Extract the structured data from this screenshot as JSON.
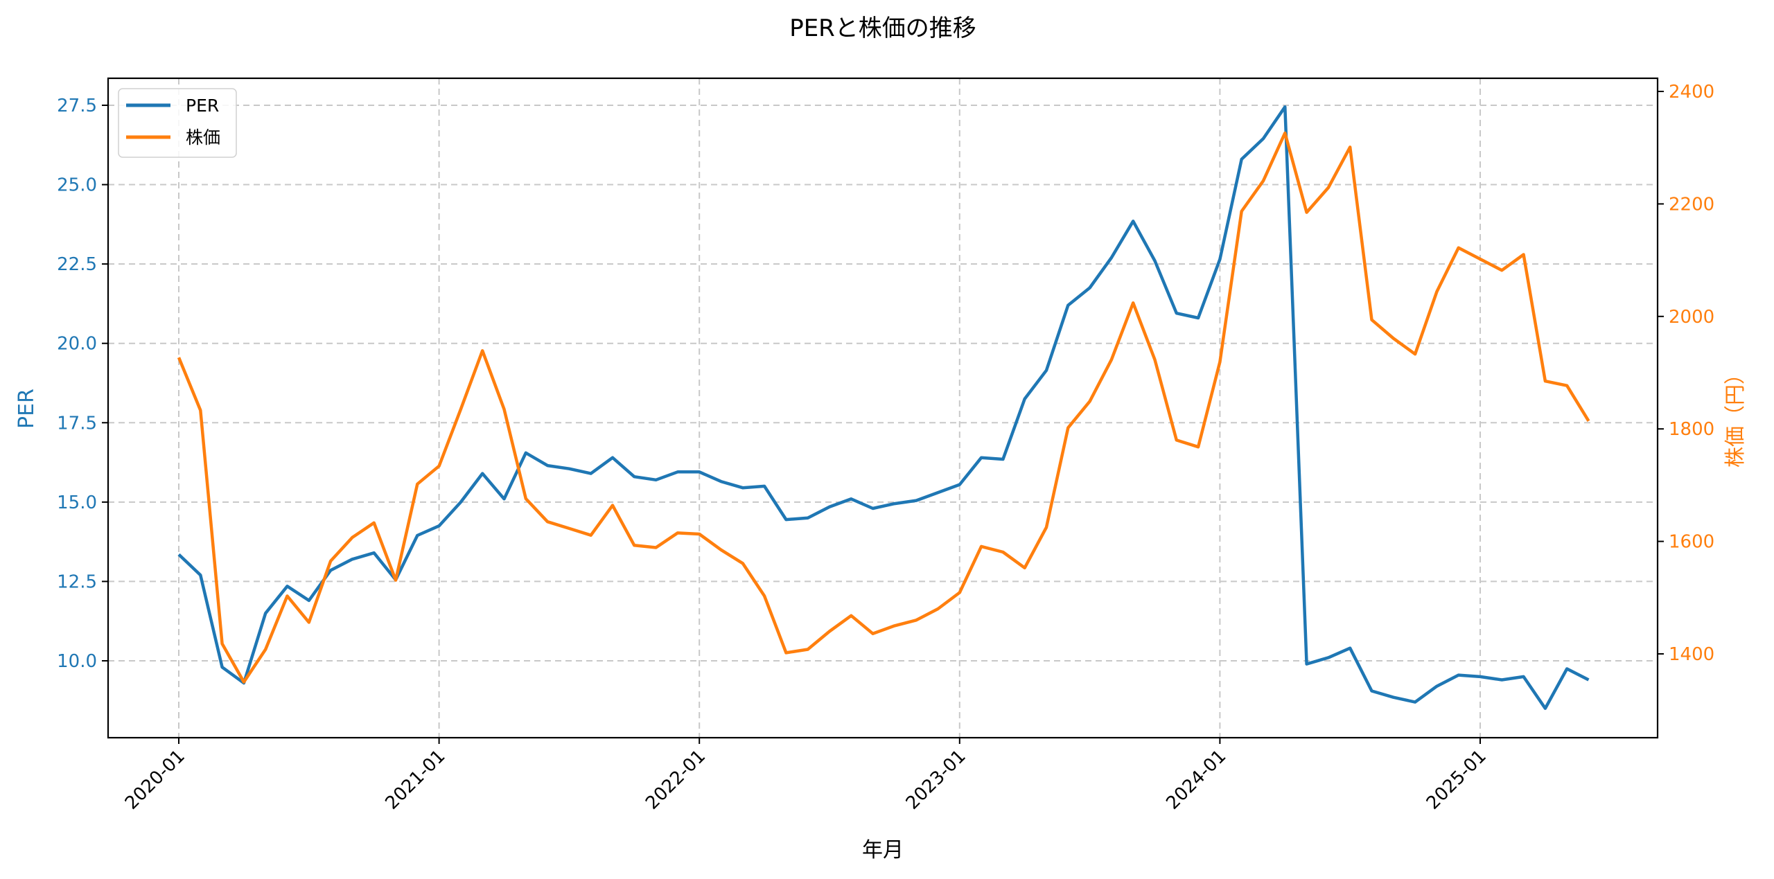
{
  "chart_data": {
    "type": "line",
    "title": "PERと株価の推移",
    "xlabel": "年月",
    "ylabel_left": "PER",
    "ylabel_right": "株価（円）",
    "x_ticks": [
      "2020-01",
      "2021-01",
      "2022-01",
      "2023-01",
      "2024-01",
      "2025-01"
    ],
    "y_left_ticks": [
      "10.0",
      "12.5",
      "15.0",
      "17.5",
      "20.0",
      "22.5",
      "25.0",
      "27.5"
    ],
    "y_right_ticks": [
      "1400",
      "1600",
      "1800",
      "2000",
      "2200",
      "2400"
    ],
    "ylim_left": [
      7.4,
      28.35
    ],
    "ylim_right": [
      1245,
      2420
    ],
    "grid": true,
    "legend_position": "upper left",
    "x": [
      "2020-01",
      "2020-02",
      "2020-03",
      "2020-04",
      "2020-05",
      "2020-06",
      "2020-07",
      "2020-08",
      "2020-09",
      "2020-10",
      "2020-11",
      "2020-12",
      "2021-01",
      "2021-02",
      "2021-03",
      "2021-04",
      "2021-05",
      "2021-06",
      "2021-07",
      "2021-08",
      "2021-09",
      "2021-10",
      "2021-11",
      "2021-12",
      "2022-01",
      "2022-02",
      "2022-03",
      "2022-04",
      "2022-05",
      "2022-06",
      "2022-07",
      "2022-08",
      "2022-09",
      "2022-10",
      "2022-11",
      "2022-12",
      "2023-01",
      "2023-02",
      "2023-03",
      "2023-04",
      "2023-05",
      "2023-06",
      "2023-07",
      "2023-08",
      "2023-09",
      "2023-10",
      "2023-11",
      "2023-12",
      "2024-01",
      "2024-02",
      "2024-03",
      "2024-04",
      "2024-05",
      "2024-06",
      "2024-07",
      "2024-08",
      "2024-09",
      "2024-10",
      "2024-11",
      "2024-12",
      "2025-01",
      "2025-02",
      "2025-03",
      "2025-04",
      "2025-05",
      "2025-06"
    ],
    "series": [
      {
        "name": "PER",
        "axis": "left",
        "color": "#1f77b4",
        "values": [
          13.35,
          12.7,
          9.8,
          9.3,
          11.5,
          12.35,
          11.9,
          12.85,
          13.2,
          13.4,
          12.55,
          13.95,
          14.25,
          15.0,
          15.9,
          15.1,
          16.55,
          16.15,
          16.05,
          15.9,
          16.4,
          15.8,
          15.7,
          15.95,
          15.95,
          15.65,
          15.45,
          15.5,
          14.45,
          14.5,
          14.85,
          15.1,
          14.8,
          14.95,
          15.05,
          15.3,
          15.55,
          16.4,
          16.35,
          18.25,
          19.15,
          21.2,
          21.75,
          22.7,
          23.85,
          22.6,
          20.95,
          20.8,
          22.65,
          25.8,
          26.45,
          27.45,
          9.9,
          10.1,
          10.4,
          9.05,
          8.85,
          8.7,
          9.2,
          9.55,
          9.5,
          9.4,
          9.5,
          8.5,
          9.75,
          9.4
        ]
      },
      {
        "name": "株価",
        "axis": "right",
        "color": "#ff7f0e",
        "values": [
          1927,
          1833,
          1418,
          1350,
          1408,
          1503,
          1456,
          1565,
          1607,
          1633,
          1531,
          1702,
          1734,
          1835,
          1939,
          1835,
          1676,
          1635,
          1623,
          1611,
          1664,
          1593,
          1589,
          1615,
          1613,
          1585,
          1561,
          1503,
          1402,
          1408,
          1440,
          1468,
          1436,
          1450,
          1460,
          1480,
          1509,
          1591,
          1581,
          1553,
          1625,
          1802,
          1849,
          1923,
          2024,
          1923,
          1780,
          1768,
          1919,
          2187,
          2241,
          2326,
          2185,
          2229,
          2301,
          1994,
          1961,
          1933,
          2044,
          2122,
          2102,
          2082,
          2110,
          1885,
          1877,
          1814
        ]
      }
    ]
  }
}
